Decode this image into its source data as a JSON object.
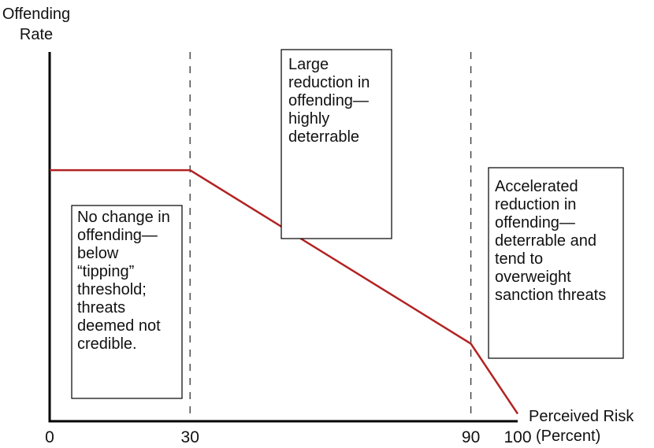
{
  "chart_data": {
    "type": "line",
    "ylabel": [
      "Offending",
      "Rate"
    ],
    "xlabel": [
      "Perceived Risk",
      "(Percent)"
    ],
    "xlim": [
      0,
      100
    ],
    "ylim": [
      0,
      100
    ],
    "x_ticks": [
      "0",
      "30",
      "90",
      "100"
    ],
    "y_ticks_shown": false,
    "grid": false,
    "reference_lines": [
      30,
      90
    ],
    "colors": {
      "line": "#b22222",
      "axes": "#000000",
      "reference": "#333333"
    },
    "series": [
      {
        "x": [
          0,
          30,
          90,
          100
        ],
        "y": [
          68,
          68,
          21,
          2
        ]
      }
    ],
    "annotations": [
      {
        "id": "no-change",
        "lines": [
          "No change in",
          "offending—",
          "below",
          "“tipping”",
          "threshold;",
          "threats",
          "deemed not",
          "credible."
        ]
      },
      {
        "id": "large-reduction",
        "lines": [
          "Large",
          "reduction in",
          "offending—",
          "highly",
          "deterrable"
        ]
      },
      {
        "id": "accelerated",
        "lines": [
          "Accelerated",
          "reduction in",
          "offending—",
          "deterrable and",
          "tend to",
          "overweight",
          "sanction threats"
        ]
      }
    ]
  }
}
